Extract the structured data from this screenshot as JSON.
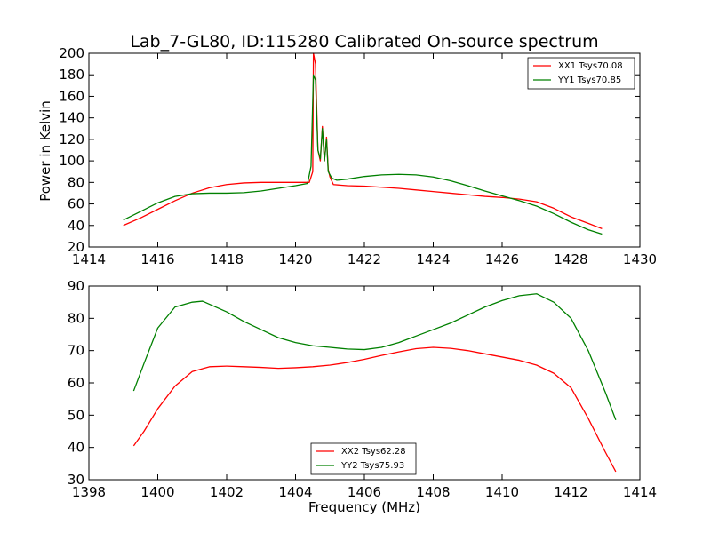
{
  "chart_data": [
    {
      "type": "line",
      "title": "Lab_7-GL80, ID:115280 Calibrated On-source spectrum",
      "xlabel": "",
      "ylabel": "Power in Kelvin",
      "xlim": [
        1414,
        1430
      ],
      "ylim": [
        20,
        200
      ],
      "xticks": [
        1414,
        1416,
        1418,
        1420,
        1422,
        1424,
        1426,
        1428,
        1430
      ],
      "yticks": [
        20,
        40,
        60,
        80,
        100,
        120,
        140,
        160,
        180,
        200
      ],
      "grid": false,
      "legend_position": "top-right",
      "series": [
        {
          "name": "XX1 Tsys70.08",
          "color": "#ff0000",
          "points": [
            [
              1415.0,
              40
            ],
            [
              1415.5,
              47
            ],
            [
              1416.0,
              55
            ],
            [
              1416.5,
              63
            ],
            [
              1417.0,
              70
            ],
            [
              1417.5,
              75
            ],
            [
              1418.0,
              78
            ],
            [
              1418.5,
              79.5
            ],
            [
              1419.0,
              80
            ],
            [
              1419.5,
              80
            ],
            [
              1420.0,
              80
            ],
            [
              1420.4,
              80
            ],
            [
              1420.5,
              90
            ],
            [
              1420.52,
              200
            ],
            [
              1420.58,
              190
            ],
            [
              1420.65,
              110
            ],
            [
              1420.72,
              100
            ],
            [
              1420.78,
              132
            ],
            [
              1420.84,
              100
            ],
            [
              1420.9,
              122
            ],
            [
              1420.95,
              92
            ],
            [
              1421.0,
              85
            ],
            [
              1421.1,
              78
            ],
            [
              1421.5,
              77
            ],
            [
              1422.0,
              76.5
            ],
            [
              1422.5,
              75.5
            ],
            [
              1423.0,
              74.5
            ],
            [
              1423.5,
              73
            ],
            [
              1424.0,
              71.5
            ],
            [
              1424.5,
              70
            ],
            [
              1425.0,
              68.5
            ],
            [
              1425.5,
              67
            ],
            [
              1426.0,
              66
            ],
            [
              1426.5,
              64.5
            ],
            [
              1427.0,
              62
            ],
            [
              1427.5,
              56
            ],
            [
              1428.0,
              48
            ],
            [
              1428.5,
              42
            ],
            [
              1428.9,
              37
            ]
          ]
        },
        {
          "name": "YY1 Tsys70.85",
          "color": "#008000",
          "points": [
            [
              1415.0,
              45
            ],
            [
              1415.5,
              53
            ],
            [
              1416.0,
              61
            ],
            [
              1416.5,
              67
            ],
            [
              1417.0,
              69.5
            ],
            [
              1417.5,
              70
            ],
            [
              1418.0,
              70
            ],
            [
              1418.5,
              70.5
            ],
            [
              1419.0,
              72
            ],
            [
              1419.5,
              74.5
            ],
            [
              1420.0,
              77
            ],
            [
              1420.35,
              79
            ],
            [
              1420.45,
              95
            ],
            [
              1420.52,
              180
            ],
            [
              1420.58,
              175
            ],
            [
              1420.65,
              110
            ],
            [
              1420.72,
              102
            ],
            [
              1420.78,
              130
            ],
            [
              1420.84,
              100
            ],
            [
              1420.9,
              120
            ],
            [
              1420.95,
              90
            ],
            [
              1421.05,
              84
            ],
            [
              1421.2,
              82
            ],
            [
              1421.5,
              83
            ],
            [
              1422.0,
              85.5
            ],
            [
              1422.5,
              87
            ],
            [
              1423.0,
              87.5
            ],
            [
              1423.5,
              87
            ],
            [
              1424.0,
              85
            ],
            [
              1424.5,
              81.5
            ],
            [
              1425.0,
              77
            ],
            [
              1425.5,
              72
            ],
            [
              1426.0,
              67.5
            ],
            [
              1426.5,
              63
            ],
            [
              1427.0,
              58
            ],
            [
              1427.5,
              51
            ],
            [
              1428.0,
              43
            ],
            [
              1428.5,
              36
            ],
            [
              1428.9,
              32
            ]
          ]
        }
      ]
    },
    {
      "type": "line",
      "title": "",
      "xlabel": "Frequency (MHz)",
      "ylabel": "",
      "xlim": [
        1398,
        1414
      ],
      "ylim": [
        30,
        90
      ],
      "xticks": [
        1398,
        1400,
        1402,
        1404,
        1406,
        1408,
        1410,
        1412,
        1414
      ],
      "yticks": [
        30,
        40,
        50,
        60,
        70,
        80,
        90
      ],
      "grid": false,
      "legend_position": "bottom-center",
      "series": [
        {
          "name": "XX2 Tsys62.28",
          "color": "#ff0000",
          "points": [
            [
              1399.3,
              40.5
            ],
            [
              1399.6,
              45
            ],
            [
              1400.0,
              52
            ],
            [
              1400.5,
              59
            ],
            [
              1401.0,
              63.5
            ],
            [
              1401.5,
              65
            ],
            [
              1402.0,
              65.2
            ],
            [
              1402.5,
              65
            ],
            [
              1403.0,
              64.8
            ],
            [
              1403.5,
              64.5
            ],
            [
              1404.0,
              64.7
            ],
            [
              1404.5,
              65
            ],
            [
              1405.0,
              65.5
            ],
            [
              1405.5,
              66.3
            ],
            [
              1406.0,
              67.3
            ],
            [
              1406.5,
              68.5
            ],
            [
              1407.0,
              69.6
            ],
            [
              1407.5,
              70.6
            ],
            [
              1408.0,
              71
            ],
            [
              1408.5,
              70.7
            ],
            [
              1409.0,
              70
            ],
            [
              1409.5,
              69
            ],
            [
              1410.0,
              68
            ],
            [
              1410.5,
              67
            ],
            [
              1411.0,
              65.5
            ],
            [
              1411.5,
              63
            ],
            [
              1412.0,
              58.5
            ],
            [
              1412.5,
              49
            ],
            [
              1413.0,
              38.5
            ],
            [
              1413.3,
              32.5
            ]
          ]
        },
        {
          "name": "YY2 Tsys75.93",
          "color": "#008000",
          "points": [
            [
              1399.3,
              57.5
            ],
            [
              1399.6,
              66
            ],
            [
              1400.0,
              77
            ],
            [
              1400.5,
              83.5
            ],
            [
              1401.0,
              85
            ],
            [
              1401.3,
              85.3
            ],
            [
              1402.0,
              82
            ],
            [
              1402.5,
              79
            ],
            [
              1403.0,
              76.5
            ],
            [
              1403.5,
              74
            ],
            [
              1404.0,
              72.5
            ],
            [
              1404.5,
              71.5
            ],
            [
              1405.0,
              71
            ],
            [
              1405.5,
              70.5
            ],
            [
              1406.0,
              70.3
            ],
            [
              1406.5,
              71
            ],
            [
              1407.0,
              72.5
            ],
            [
              1407.5,
              74.5
            ],
            [
              1408.0,
              76.5
            ],
            [
              1408.5,
              78.5
            ],
            [
              1409.0,
              81
            ],
            [
              1409.5,
              83.5
            ],
            [
              1410.0,
              85.5
            ],
            [
              1410.5,
              87
            ],
            [
              1411.0,
              87.6
            ],
            [
              1411.5,
              85
            ],
            [
              1412.0,
              80
            ],
            [
              1412.5,
              70
            ],
            [
              1413.0,
              57
            ],
            [
              1413.3,
              48.5
            ]
          ]
        }
      ]
    }
  ]
}
